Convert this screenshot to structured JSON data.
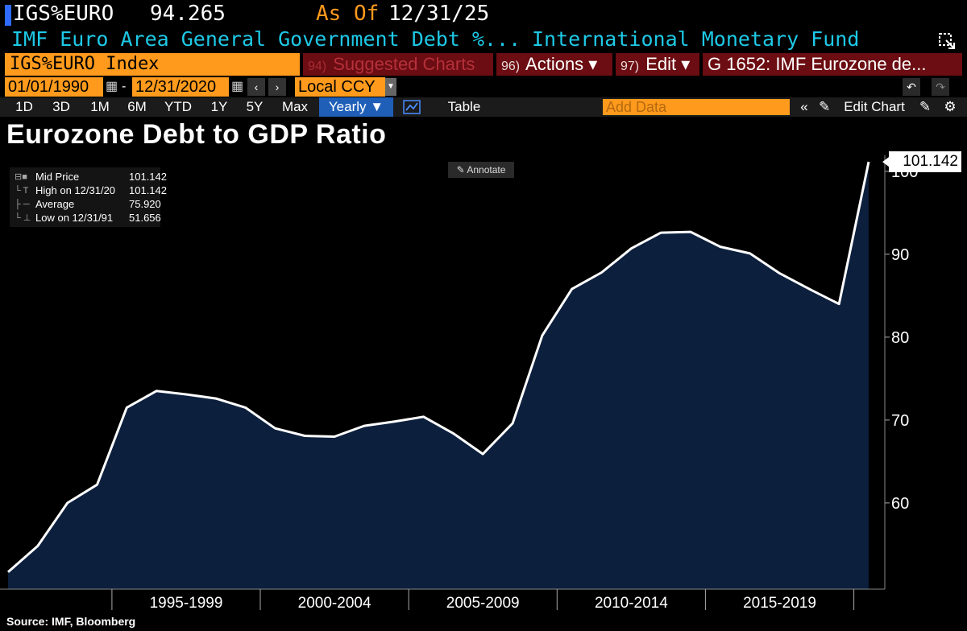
{
  "header": {
    "ticker": "IGS%EURO",
    "price": "94.265",
    "as_of_label": "As Of",
    "as_of_date": "12/31/25",
    "description": "IMF Euro Area General Government Debt %...",
    "source_name": "International Monetary Fund"
  },
  "toolbar": {
    "security": "IGS%EURO Index",
    "suggested_num": "94)",
    "suggested_label": "Suggested Charts",
    "actions_num": "96)",
    "actions_label": "Actions ▾",
    "edit_num": "97)",
    "edit_label": "Edit ▾",
    "chart_title": "G 1652: IMF Eurozone de...",
    "start_date": "01/01/1990",
    "end_date": "12/31/2020",
    "currency": "Local CCY",
    "ranges": [
      "1D",
      "3D",
      "1M",
      "6M",
      "YTD",
      "1Y",
      "5Y",
      "Max"
    ],
    "frequency": "Yearly ▼",
    "table_label": "Table",
    "add_data_placeholder": "Add Data",
    "edit_chart_label": "Edit Chart"
  },
  "colors": {
    "accent_orange": "#ff9a1c",
    "header_cyan": "#1ec9e6",
    "menu_red": "#6b0d12",
    "fill_navy": "#0c1f3d",
    "line": "#ffffff"
  },
  "legend": {
    "rows": [
      {
        "name": "Mid Price",
        "value": "101.142"
      },
      {
        "name": "High on 12/31/20",
        "value": "101.142"
      },
      {
        "name": "Average",
        "value": "75.920"
      },
      {
        "name": "Low on 12/31/91",
        "value": "51.656"
      }
    ],
    "annotate_label": "Annotate"
  },
  "chart_data": {
    "type": "area",
    "title": "Eurozone Debt to GDP Ratio",
    "x": [
      1991,
      1992,
      1993,
      1994,
      1995,
      1996,
      1997,
      1998,
      1999,
      2000,
      2001,
      2002,
      2003,
      2004,
      2005,
      2006,
      2007,
      2008,
      2009,
      2010,
      2011,
      2012,
      2013,
      2014,
      2015,
      2016,
      2017,
      2018,
      2019,
      2020
    ],
    "series": [
      {
        "values": [
          51.656,
          54.8,
          60.0,
          62.2,
          71.5,
          73.5,
          73.1,
          72.6,
          71.5,
          69.0,
          68.1,
          68.0,
          69.3,
          69.8,
          70.4,
          68.4,
          65.9,
          69.6,
          80.2,
          85.8,
          87.8,
          90.7,
          92.6,
          92.7,
          90.9,
          90.1,
          87.7,
          85.8,
          84.0,
          101.142
        ]
      }
    ],
    "last_value_label": "101.142",
    "y_ticks": [
      60,
      70,
      80,
      90,
      100
    ],
    "x_tick_labels": [
      "1995-1999",
      "2000-2004",
      "2005-2009",
      "2010-2014",
      "2015-2019"
    ],
    "ylim": [
      49.6,
      106.3
    ],
    "grid": false,
    "legend_placement": "top-left"
  },
  "footer": {
    "source": "Source: IMF, Bloomberg"
  }
}
